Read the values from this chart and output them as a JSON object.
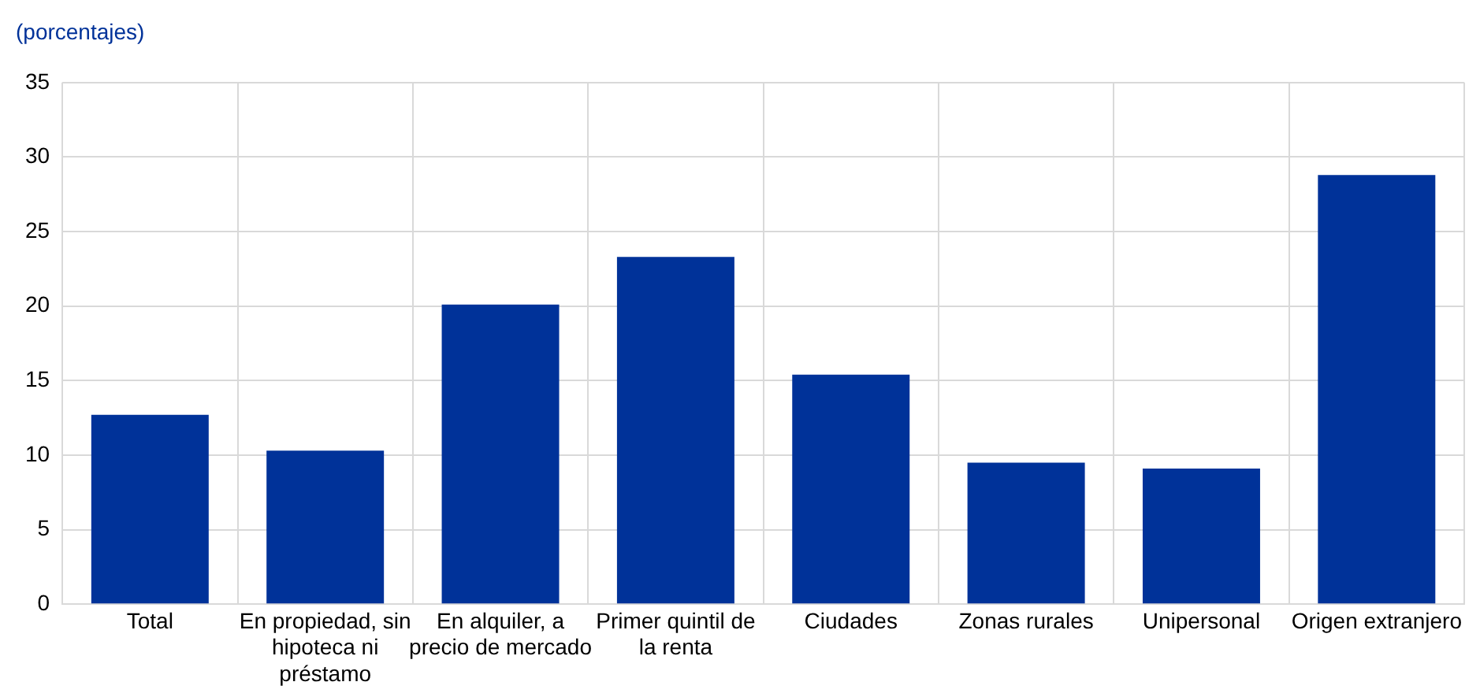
{
  "chart_data": {
    "type": "bar",
    "title": "(porcentajes)",
    "categories": [
      "Total",
      "En propiedad, sin hipoteca ni préstamo",
      "En alquiler, a precio de mercado",
      "Primer quintil de la renta",
      "Ciudades",
      "Zonas rurales",
      "Unipersonal",
      "Origen extranjero"
    ],
    "values": [
      12.7,
      10.3,
      20.1,
      23.3,
      15.4,
      9.5,
      9.1,
      28.8
    ],
    "color": "#003299",
    "ylim": [
      0,
      35
    ],
    "yticks": [
      0,
      5,
      10,
      15,
      20,
      25,
      30,
      35
    ],
    "grid": true
  }
}
